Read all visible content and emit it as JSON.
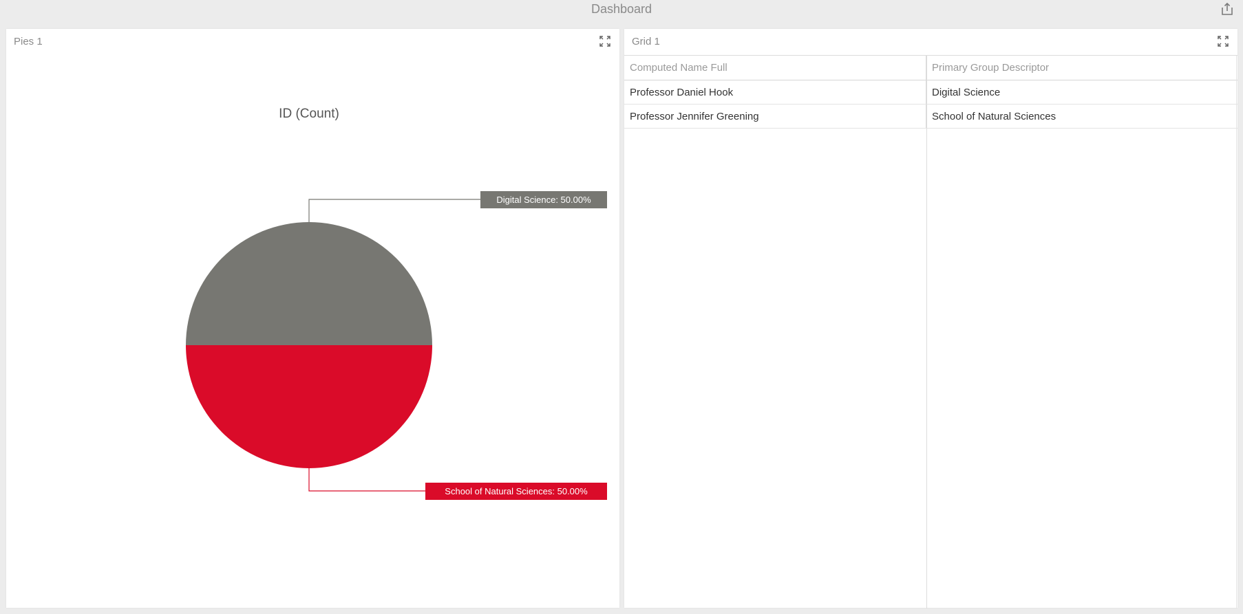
{
  "header": {
    "title": "Dashboard",
    "export_icon": "share-export-icon"
  },
  "pies_panel": {
    "title": "Pies 1",
    "expand_icon": "expand-icon"
  },
  "grid_panel": {
    "title": "Grid 1",
    "expand_icon": "expand-icon",
    "columns": [
      "Computed Name Full",
      "Primary Group Descriptor"
    ],
    "rows": [
      [
        "Professor Daniel Hook",
        "Digital Science"
      ],
      [
        "Professor Jennifer Greening",
        "School of Natural Sciences"
      ]
    ]
  },
  "chart_data": {
    "type": "pie",
    "title": "ID (Count)",
    "slices": [
      {
        "name": "Digital Science",
        "value": 50.0,
        "label": "Digital Science: 50.00%",
        "color": "#777772"
      },
      {
        "name": "School of Natural Sciences",
        "value": 50.0,
        "label": "School of Natural Sciences: 50.00%",
        "color": "#da0b29"
      }
    ],
    "legend": "none"
  }
}
